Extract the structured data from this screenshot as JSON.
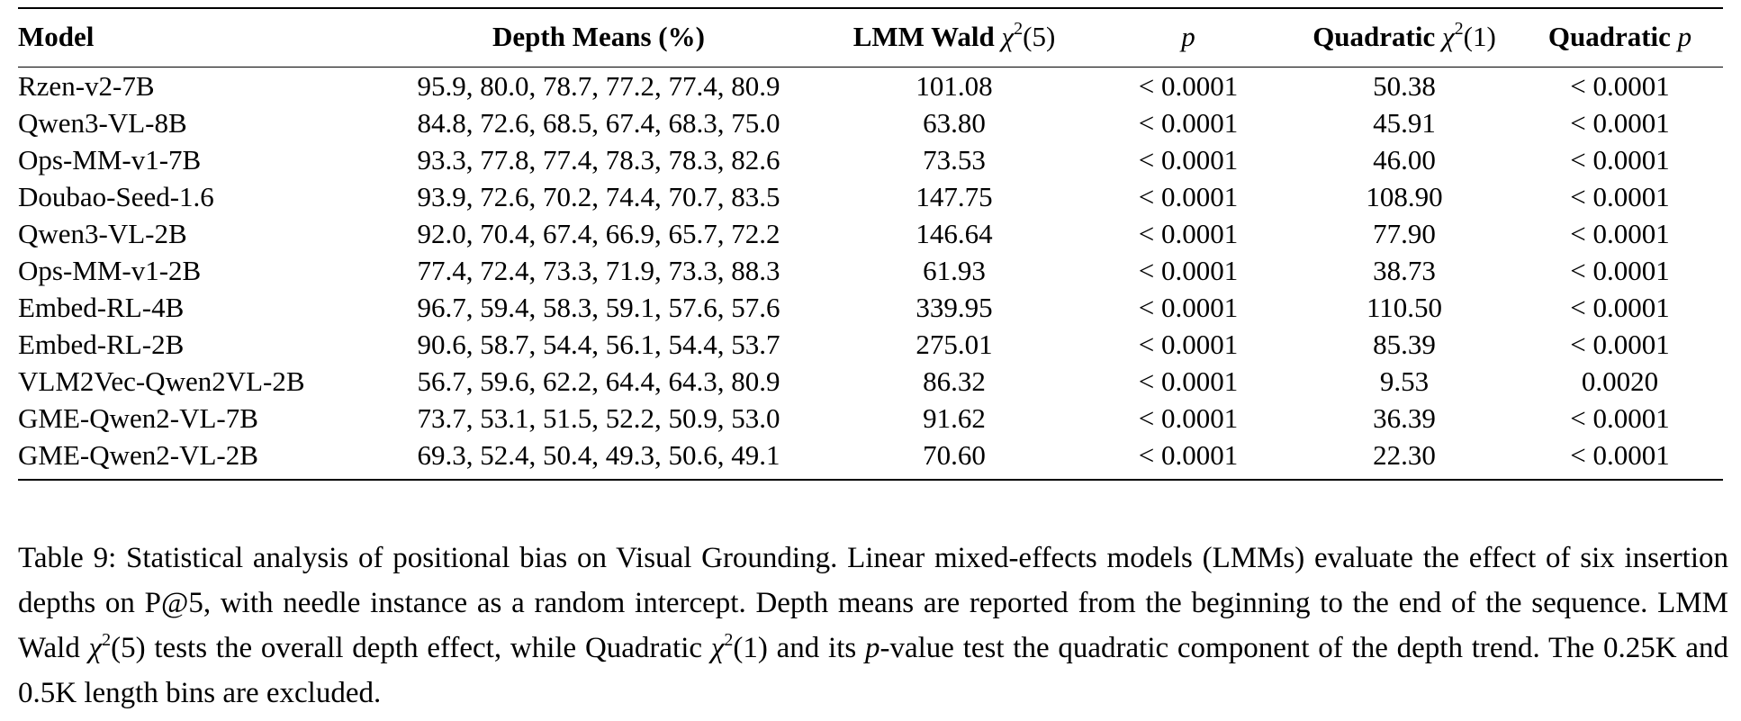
{
  "table": {
    "headers": {
      "model": "Model",
      "depth": "Depth Means (%)",
      "wald_prefix": "LMM Wald",
      "wald_chi": "χ",
      "wald_sup": "2",
      "wald_arg": "(5)",
      "p": "p",
      "quad_prefix": "Quadratic",
      "quad_chi": "χ",
      "quad_sup": "2",
      "quad_arg": "(1)",
      "qp_prefix": "Quadratic",
      "qp_var": "p"
    },
    "rows": [
      {
        "model": "Rzen-v2-7B",
        "depth": "95.9, 80.0, 78.7, 77.2, 77.4, 80.9",
        "wald": "101.08",
        "p": "< 0.0001",
        "quad": "50.38",
        "qp": "< 0.0001"
      },
      {
        "model": "Qwen3-VL-8B",
        "depth": "84.8, 72.6, 68.5, 67.4, 68.3, 75.0",
        "wald": "63.80",
        "p": "< 0.0001",
        "quad": "45.91",
        "qp": "< 0.0001"
      },
      {
        "model": "Ops-MM-v1-7B",
        "depth": "93.3, 77.8, 77.4, 78.3, 78.3, 82.6",
        "wald": "73.53",
        "p": "< 0.0001",
        "quad": "46.00",
        "qp": "< 0.0001"
      },
      {
        "model": "Doubao-Seed-1.6",
        "depth": "93.9, 72.6, 70.2, 74.4, 70.7, 83.5",
        "wald": "147.75",
        "p": "< 0.0001",
        "quad": "108.90",
        "qp": "< 0.0001"
      },
      {
        "model": "Qwen3-VL-2B",
        "depth": "92.0, 70.4, 67.4, 66.9, 65.7, 72.2",
        "wald": "146.64",
        "p": "< 0.0001",
        "quad": "77.90",
        "qp": "< 0.0001"
      },
      {
        "model": "Ops-MM-v1-2B",
        "depth": "77.4, 72.4, 73.3, 71.9, 73.3, 88.3",
        "wald": "61.93",
        "p": "< 0.0001",
        "quad": "38.73",
        "qp": "< 0.0001"
      },
      {
        "model": "Embed-RL-4B",
        "depth": "96.7, 59.4, 58.3, 59.1, 57.6, 57.6",
        "wald": "339.95",
        "p": "< 0.0001",
        "quad": "110.50",
        "qp": "< 0.0001"
      },
      {
        "model": "Embed-RL-2B",
        "depth": "90.6, 58.7, 54.4, 56.1, 54.4, 53.7",
        "wald": "275.01",
        "p": "< 0.0001",
        "quad": "85.39",
        "qp": "< 0.0001"
      },
      {
        "model": "VLM2Vec-Qwen2VL-2B",
        "depth": "56.7, 59.6, 62.2, 64.4, 64.3, 80.9",
        "wald": "86.32",
        "p": "< 0.0001",
        "quad": "9.53",
        "qp": "0.0020"
      },
      {
        "model": "GME-Qwen2-VL-7B",
        "depth": "73.7, 53.1, 51.5, 52.2, 50.9, 53.0",
        "wald": "91.62",
        "p": "< 0.0001",
        "quad": "36.39",
        "qp": "< 0.0001"
      },
      {
        "model": "GME-Qwen2-VL-2B",
        "depth": "69.3, 52.4, 50.4, 49.3, 50.6, 49.1",
        "wald": "70.60",
        "p": "< 0.0001",
        "quad": "22.30",
        "qp": "< 0.0001"
      }
    ]
  },
  "caption": {
    "part1": "Table 9: Statistical analysis of positional bias on Visual Grounding. Linear mixed-effects models (LMMs) evaluate the effect of six insertion depths on P@5, with needle instance as a random intercept. Depth means are reported from the beginning to the end of the sequence. LMM Wald ",
    "chi1": "χ",
    "sup1": "2",
    "arg1": "(5)",
    "part2": " tests the overall depth effect, while Quadratic ",
    "chi2": "χ",
    "sup2": "2",
    "arg2": "(1)",
    "part3": " and its ",
    "pvar": "p",
    "part4": "-value test the quadratic component of the depth trend. The 0.25K and 0.5K length bins are excluded."
  }
}
